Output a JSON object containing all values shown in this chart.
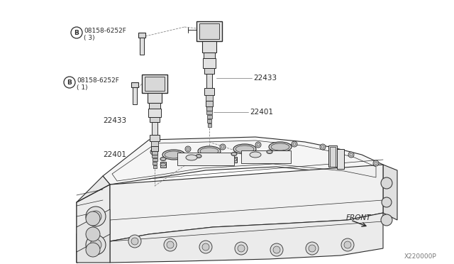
{
  "bg_color": "#FFFFFF",
  "line_color": "#2a2a2a",
  "gray_color": "#888888",
  "light_gray": "#cccccc",
  "mid_gray": "#aaaaaa",
  "part_numbers": {
    "bolt_top": "08158-6252F",
    "bolt_top_qty": "( 3)",
    "bolt_mid": "08158-6252F",
    "bolt_mid_qty": "( 1)",
    "coil_label": "22433",
    "spark_label": "22401"
  },
  "watermark": "X220000P",
  "front_label": "FRONT",
  "fig_width": 6.4,
  "fig_height": 3.72,
  "dpi": 100
}
